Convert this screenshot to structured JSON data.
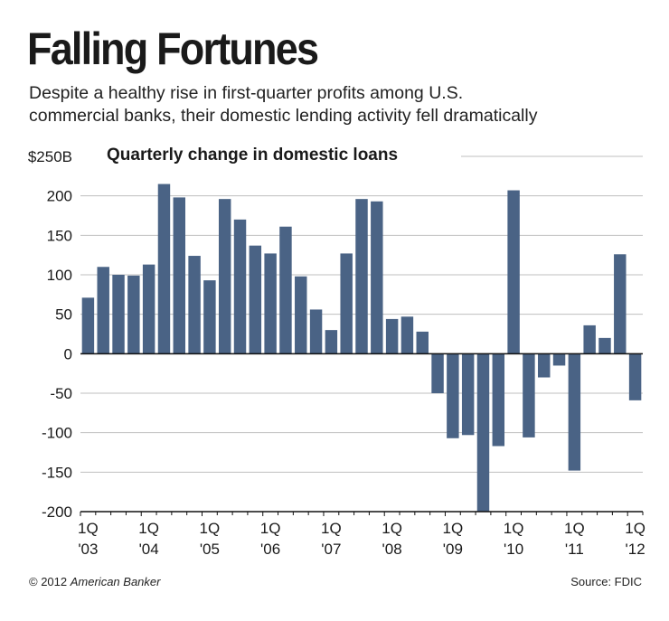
{
  "header": {
    "title": "Falling Fortunes",
    "subtitle_line1": "Despite a healthy rise in first-quarter profits among U.S.",
    "subtitle_line2": "commercial banks, their domestic lending activity fell dramatically"
  },
  "footer": {
    "copyright": "© 2012",
    "publisher": "American Banker",
    "source": "Source: FDIC"
  },
  "colors": {
    "bar": "#4a6385",
    "grid": "#bfbfbf",
    "text": "#1a1a1a"
  },
  "chart_data": {
    "type": "bar",
    "title": "Quarterly change in domestic loans",
    "xlabel": "",
    "ylabel": "",
    "ylim": [
      -200,
      250
    ],
    "yticks": [
      250,
      200,
      150,
      100,
      50,
      0,
      -50,
      -100,
      -150,
      -200
    ],
    "ytick_labels": [
      "$250B",
      "200",
      "150",
      "100",
      "50",
      "0",
      "-50",
      "-100",
      "-150",
      "-200"
    ],
    "grid": true,
    "year_labels": [
      {
        "q": "1Q",
        "y": "'03"
      },
      {
        "q": "1Q",
        "y": "'04"
      },
      {
        "q": "1Q",
        "y": "'05"
      },
      {
        "q": "1Q",
        "y": "'06"
      },
      {
        "q": "1Q",
        "y": "'07"
      },
      {
        "q": "1Q",
        "y": "'08"
      },
      {
        "q": "1Q",
        "y": "'09"
      },
      {
        "q": "1Q",
        "y": "'10"
      },
      {
        "q": "1Q",
        "y": "'11"
      },
      {
        "q": "1Q",
        "y": "'12"
      }
    ],
    "categories": [
      "1Q03",
      "2Q03",
      "3Q03",
      "4Q03",
      "1Q04",
      "2Q04",
      "3Q04",
      "4Q04",
      "1Q05",
      "2Q05",
      "3Q05",
      "4Q05",
      "1Q06",
      "2Q06",
      "3Q06",
      "4Q06",
      "1Q07",
      "2Q07",
      "3Q07",
      "4Q07",
      "1Q08",
      "2Q08",
      "3Q08",
      "4Q08",
      "1Q09",
      "2Q09",
      "3Q09",
      "4Q09",
      "1Q10",
      "2Q10",
      "3Q10",
      "4Q10",
      "1Q11",
      "2Q11",
      "3Q11",
      "4Q11",
      "1Q12"
    ],
    "values": [
      71,
      110,
      100,
      99,
      113,
      215,
      198,
      124,
      93,
      196,
      170,
      137,
      127,
      161,
      98,
      56,
      30,
      127,
      196,
      193,
      44,
      47,
      28,
      -50,
      -107,
      -103,
      -205,
      -117,
      207,
      -106,
      -30,
      -15,
      -148,
      36,
      20,
      126,
      -59
    ]
  }
}
